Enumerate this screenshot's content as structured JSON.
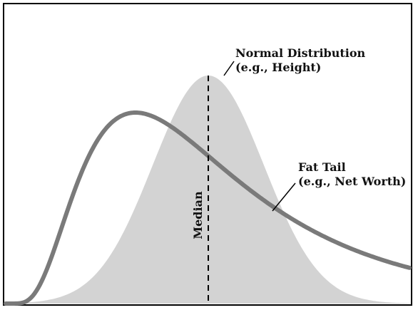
{
  "figure": {
    "normal_label": "Normal Distribution",
    "normal_sublabel": "(e.g., Height)",
    "fat_label": "Fat Tail",
    "fat_sublabel": "(e.g., Net Worth)",
    "median_label": "Median",
    "colors": {
      "frame": "#000000",
      "normal_fill": "#d3d3d3",
      "fat_curve": "#7a7a7a",
      "median_line": "#000000",
      "text": "#111111"
    }
  }
}
